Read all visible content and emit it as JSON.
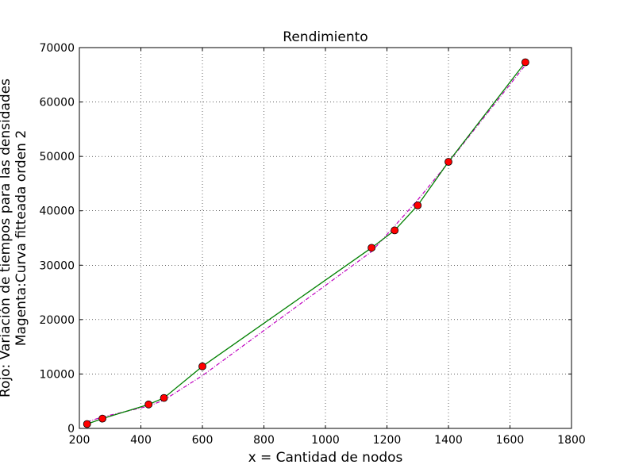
{
  "chart_data": {
    "type": "line",
    "title": "Rendimiento",
    "xlabel": "x = Cantidad de nodos",
    "ylabel_lines": [
      "Rojo: Variación de tiempos para las densidades",
      "Magenta:Curva fitteada orden 2"
    ],
    "xlim": [
      200,
      1800
    ],
    "ylim": [
      0,
      70000
    ],
    "xticks": [
      200,
      400,
      600,
      800,
      1000,
      1200,
      1400,
      1600,
      1800
    ],
    "yticks": [
      0,
      10000,
      20000,
      30000,
      40000,
      50000,
      60000,
      70000
    ],
    "grid": true,
    "series": [
      {
        "style": "measured",
        "line_color": "#008000",
        "marker_color": "#ff0000",
        "x": [
          225,
          275,
          425,
          475,
          600,
          1150,
          1225,
          1300,
          1400,
          1650
        ],
        "y": [
          800,
          1800,
          4400,
          5600,
          11400,
          33200,
          36400,
          41000,
          49000,
          67300
        ]
      },
      {
        "style": "fit",
        "line_color": "#bf00bf",
        "x": [
          225,
          275,
          425,
          475,
          600,
          1150,
          1225,
          1300,
          1400,
          1650
        ],
        "y": [
          1200,
          2100,
          4100,
          5200,
          9700,
          32500,
          37200,
          42000,
          48900,
          66800
        ]
      }
    ]
  }
}
